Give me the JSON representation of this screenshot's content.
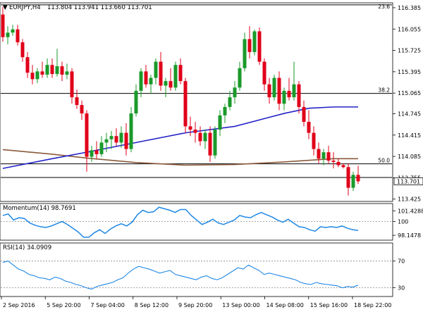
{
  "chart_data": [
    {
      "type": "candlestick",
      "symbol_label": "EURJPY,H4",
      "ohlc_label": "113.804 113.941 113.660 113.701",
      "current_price": "113.701",
      "ylim": [
        113.4,
        116.45
      ],
      "y_ticks": [
        "116.385",
        "116.055",
        "115.725",
        "115.395",
        "115.065",
        "114.745",
        "114.415",
        "114.085",
        "113.755",
        "113.425"
      ],
      "x_ticks": [
        "2 Sep 2016",
        "5 Sep 20:00",
        "7 Sep 04:00",
        "8 Sep 12:00",
        "9 Sep 20:00",
        "13 Sep 00:00",
        "14 Sep 08:00",
        "15 Sep 16:00",
        "18 Sep 22:00"
      ],
      "fib_levels": [
        {
          "label": "23.6",
          "price": 116.43
        },
        {
          "label": "38.2",
          "price": 115.06
        },
        {
          "label": "50.0",
          "price": 113.97
        }
      ],
      "support_level": 113.76,
      "candles": [
        [
          116.28,
          116.4,
          115.86,
          115.93
        ],
        [
          115.93,
          116.1,
          115.82,
          116.0
        ],
        [
          116.0,
          116.12,
          115.95,
          116.05
        ],
        [
          116.05,
          116.12,
          115.8,
          115.85
        ],
        [
          115.85,
          115.9,
          115.55,
          115.62
        ],
        [
          115.62,
          115.7,
          115.3,
          115.38
        ],
        [
          115.38,
          115.5,
          115.2,
          115.28
        ],
        [
          115.28,
          115.45,
          115.22,
          115.4
        ],
        [
          115.4,
          115.55,
          115.3,
          115.35
        ],
        [
          115.35,
          115.6,
          115.3,
          115.5
        ],
        [
          115.5,
          115.6,
          115.3,
          115.36
        ],
        [
          115.36,
          115.75,
          115.32,
          115.48
        ],
        [
          115.48,
          115.55,
          115.25,
          115.35
        ],
        [
          115.35,
          115.52,
          115.28,
          115.4
        ],
        [
          115.4,
          115.45,
          114.9,
          115.0
        ],
        [
          115.0,
          115.12,
          114.82,
          114.88
        ],
        [
          114.88,
          114.95,
          114.65,
          114.75
        ],
        [
          114.75,
          114.8,
          113.85,
          114.08
        ],
        [
          114.08,
          114.25,
          114.0,
          114.18
        ],
        [
          114.18,
          114.32,
          114.05,
          114.12
        ],
        [
          114.12,
          114.4,
          114.08,
          114.3
        ],
        [
          114.3,
          114.45,
          114.15,
          114.35
        ],
        [
          114.35,
          114.48,
          114.2,
          114.4
        ],
        [
          114.4,
          114.52,
          114.25,
          114.3
        ],
        [
          114.3,
          114.55,
          114.22,
          114.45
        ],
        [
          114.45,
          114.6,
          114.1,
          114.2
        ],
        [
          114.2,
          114.85,
          114.15,
          114.75
        ],
        [
          114.75,
          115.2,
          114.7,
          115.1
        ],
        [
          115.1,
          115.45,
          115.0,
          115.4
        ],
        [
          115.4,
          115.5,
          115.15,
          115.2
        ],
        [
          115.2,
          115.35,
          115.05,
          115.3
        ],
        [
          115.3,
          115.6,
          115.2,
          115.55
        ],
        [
          115.55,
          115.7,
          115.1,
          115.18
        ],
        [
          115.18,
          115.3,
          115.0,
          115.25
        ],
        [
          115.25,
          115.45,
          115.1,
          115.15
        ],
        [
          115.15,
          115.55,
          115.1,
          115.5
        ],
        [
          115.5,
          115.6,
          115.2,
          115.25
        ],
        [
          115.25,
          115.3,
          114.45,
          114.55
        ],
        [
          114.55,
          114.7,
          114.4,
          114.5
        ],
        [
          114.5,
          114.62,
          114.3,
          114.45
        ],
        [
          114.45,
          114.55,
          114.25,
          114.32
        ],
        [
          114.32,
          114.5,
          114.2,
          114.45
        ],
        [
          114.45,
          114.55,
          114.0,
          114.1
        ],
        [
          114.1,
          114.55,
          114.05,
          114.5
        ],
        [
          114.5,
          114.8,
          114.4,
          114.72
        ],
        [
          114.72,
          114.9,
          114.6,
          114.85
        ],
        [
          114.85,
          115.1,
          114.8,
          115.0
        ],
        [
          115.0,
          115.25,
          114.9,
          115.15
        ],
        [
          115.15,
          115.55,
          115.1,
          115.45
        ],
        [
          115.45,
          116.0,
          115.4,
          115.9
        ],
        [
          115.9,
          116.1,
          115.6,
          115.7
        ],
        [
          115.7,
          116.05,
          115.65,
          116.02
        ],
        [
          116.02,
          116.08,
          115.5,
          115.55
        ],
        [
          115.55,
          115.6,
          115.1,
          115.2
        ],
        [
          115.2,
          115.3,
          114.9,
          115.0
        ],
        [
          115.0,
          115.35,
          114.95,
          115.3
        ],
        [
          115.3,
          115.4,
          114.8,
          114.9
        ],
        [
          114.9,
          115.15,
          114.8,
          115.1
        ],
        [
          115.1,
          115.3,
          114.95,
          115.0
        ],
        [
          115.0,
          115.55,
          114.95,
          115.2
        ],
        [
          115.2,
          115.25,
          114.75,
          114.85
        ],
        [
          114.85,
          114.95,
          114.55,
          114.62
        ],
        [
          114.62,
          114.8,
          114.35,
          114.45
        ],
        [
          114.45,
          114.55,
          114.1,
          114.2
        ],
        [
          114.2,
          114.3,
          113.98,
          114.05
        ],
        [
          114.05,
          114.2,
          113.95,
          114.15
        ],
        [
          114.15,
          114.25,
          113.98,
          114.02
        ],
        [
          114.02,
          114.15,
          113.9,
          114.0
        ],
        [
          114.0,
          114.05,
          113.92,
          113.95
        ],
        [
          113.95,
          113.98,
          113.9,
          113.92
        ],
        [
          113.92,
          113.98,
          113.48,
          113.6
        ],
        [
          113.6,
          113.85,
          113.55,
          113.8
        ],
        [
          113.8,
          113.94,
          113.66,
          113.7
        ]
      ],
      "ma_fast": [
        [
          0,
          113.9
        ],
        [
          10,
          114.05
        ],
        [
          17,
          114.15
        ],
        [
          27,
          114.3
        ],
        [
          37,
          114.45
        ],
        [
          47,
          114.55
        ],
        [
          52,
          114.65
        ],
        [
          57,
          114.75
        ],
        [
          62,
          114.83
        ],
        [
          67,
          114.85
        ],
        [
          72,
          114.85
        ]
      ],
      "ma_slow": [
        [
          0,
          114.19
        ],
        [
          10,
          114.12
        ],
        [
          17,
          114.06
        ],
        [
          27,
          113.99
        ],
        [
          37,
          113.95
        ],
        [
          47,
          113.96
        ],
        [
          57,
          114.0
        ],
        [
          67,
          114.05
        ],
        [
          72,
          114.05
        ]
      ]
    },
    {
      "type": "line",
      "name": "Momentum(14) 98.7691",
      "ylim": [
        97.6,
        102.3
      ],
      "y_ticks": [
        "101.4288",
        "100",
        "98.1478"
      ],
      "reference_level": 100,
      "values": [
        100.8,
        101.0,
        100.2,
        100.5,
        100.4,
        99.8,
        99.5,
        99.3,
        99.2,
        99.4,
        99.7,
        100.0,
        99.6,
        99.1,
        98.6,
        97.9,
        97.9,
        98.5,
        98.9,
        98.4,
        99.0,
        99.4,
        99.7,
        99.4,
        99.9,
        100.9,
        101.5,
        101.2,
        101.3,
        101.9,
        101.7,
        101.5,
        101.2,
        101.6,
        101.6,
        100.8,
        100.2,
        99.6,
        99.9,
        100.3,
        99.8,
        99.6,
        99.9,
        100.2,
        100.8,
        100.6,
        100.5,
        100.9,
        101.2,
        100.9,
        100.6,
        100.2,
        99.9,
        100.3,
        99.8,
        99.3,
        99.2,
        98.9,
        98.7,
        99.3,
        99.2,
        99.3,
        99.2,
        99.4,
        99.1,
        98.9,
        98.8
      ]
    },
    {
      "type": "line",
      "name": "RSI(14) 34.0909",
      "ylim": [
        18,
        96
      ],
      "y_ticks": [
        "70",
        "30"
      ],
      "reference_levels": [
        70,
        30
      ],
      "values": [
        68,
        70,
        64,
        58,
        55,
        50,
        48,
        45,
        44,
        42,
        46,
        44,
        40,
        38,
        35,
        33,
        30,
        28,
        32,
        34,
        36,
        38,
        42,
        45,
        52,
        58,
        62,
        60,
        58,
        55,
        52,
        54,
        56,
        50,
        48,
        46,
        44,
        42,
        46,
        48,
        44,
        42,
        45,
        50,
        55,
        60,
        58,
        64,
        60,
        56,
        50,
        52,
        50,
        48,
        46,
        44,
        42,
        38,
        36,
        35,
        38,
        36,
        35,
        34,
        33,
        30,
        32,
        31,
        34
      ]
    }
  ]
}
